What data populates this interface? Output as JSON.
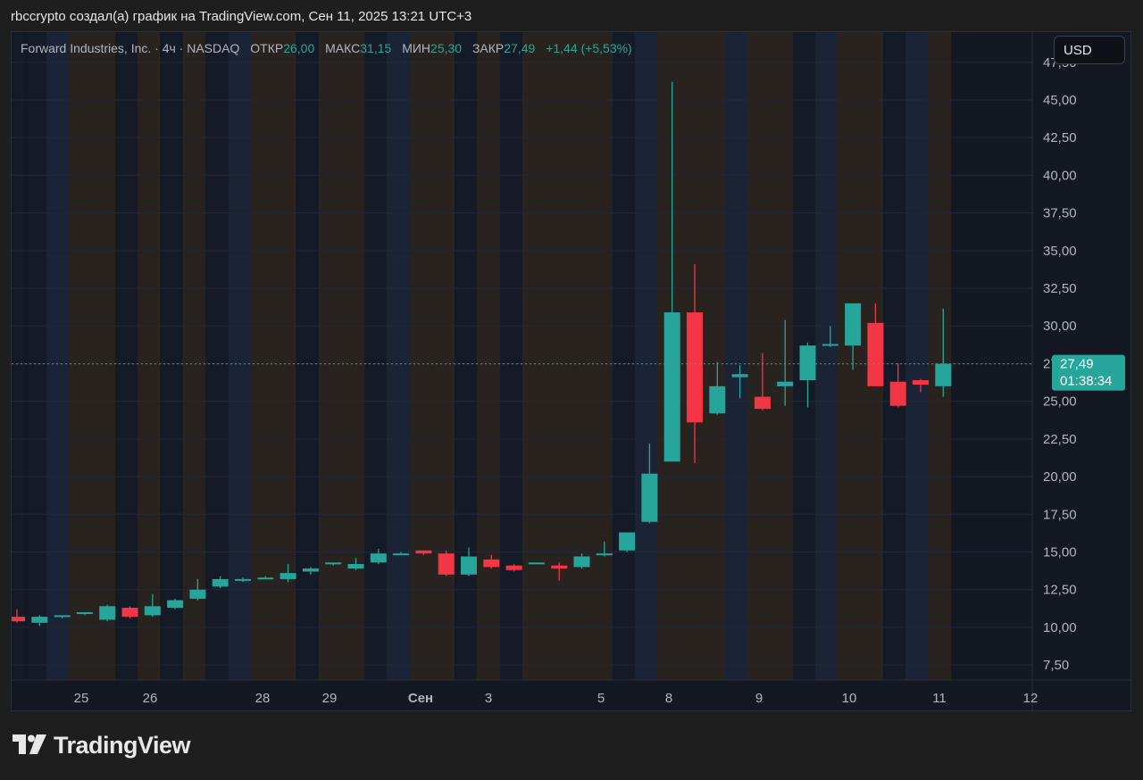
{
  "caption": "rbccrypto создал(а) график на TradingView.com, Сен 11, 2025 13:21 UTC+3",
  "legend": {
    "symbol": "Forward Industries, Inc. · 4ч · NASDAQ",
    "open_label": "ОТКР",
    "open_value": "26,00",
    "high_label": "МАКС",
    "high_value": "31,15",
    "low_label": "МИН",
    "low_value": "25,30",
    "close_label": "ЗАКР",
    "close_value": "27,49",
    "change": "+1,44 (+5,53%)"
  },
  "currency_button": "USD",
  "brand": {
    "name": "TradingView",
    "icon": "tradingview-logo-icon"
  },
  "colors": {
    "up": "#26a69a",
    "down": "#f23645",
    "background": "#141823",
    "session_blue": "#1b2439",
    "session_brown": "#2a2420",
    "price_line": "#26a69a"
  },
  "chart_data": {
    "type": "candlestick",
    "title": "Forward Industries, Inc. · 4ч · NASDAQ",
    "ylim": [
      6.5,
      49.5
    ],
    "y_ticks": [
      "47,50",
      "45,00",
      "42,50",
      "40,00",
      "37,50",
      "35,00",
      "32,50",
      "30,00",
      "27,50",
      "25,00",
      "22,50",
      "20,00",
      "17,50",
      "15,00",
      "12,50",
      "10,00",
      "7,50"
    ],
    "y_tick_values": [
      47.5,
      45,
      42.5,
      40,
      37.5,
      35,
      32.5,
      30,
      27.5,
      25,
      22.5,
      20,
      17.5,
      15,
      12.5,
      10,
      7.5
    ],
    "x_labels": [
      "25",
      "26",
      "28",
      "29",
      "Сен",
      "3",
      "5",
      "8",
      "9",
      "10",
      "11",
      "12"
    ],
    "last_price": {
      "value": 27.49,
      "label": "27,49",
      "countdown": "01:38:34"
    },
    "candles": [
      {
        "o": 10.7,
        "h": 11.2,
        "l": 10.3,
        "c": 10.4
      },
      {
        "o": 10.3,
        "h": 10.8,
        "l": 10.1,
        "c": 10.7
      },
      {
        "o": 10.7,
        "h": 10.8,
        "l": 10.6,
        "c": 10.8
      },
      {
        "o": 10.9,
        "h": 11.0,
        "l": 10.8,
        "c": 11.0
      },
      {
        "o": 10.5,
        "h": 11.5,
        "l": 10.4,
        "c": 11.4
      },
      {
        "o": 11.3,
        "h": 11.4,
        "l": 10.6,
        "c": 10.7
      },
      {
        "o": 10.8,
        "h": 12.2,
        "l": 10.7,
        "c": 11.4
      },
      {
        "o": 11.3,
        "h": 11.9,
        "l": 11.2,
        "c": 11.8
      },
      {
        "o": 11.9,
        "h": 13.2,
        "l": 11.8,
        "c": 12.5
      },
      {
        "o": 12.7,
        "h": 13.4,
        "l": 12.6,
        "c": 13.2
      },
      {
        "o": 13.1,
        "h": 13.3,
        "l": 13.0,
        "c": 13.2
      },
      {
        "o": 13.3,
        "h": 13.4,
        "l": 13.2,
        "c": 13.3
      },
      {
        "o": 13.2,
        "h": 14.2,
        "l": 13.0,
        "c": 13.6
      },
      {
        "o": 13.7,
        "h": 14.0,
        "l": 13.5,
        "c": 13.9
      },
      {
        "o": 14.2,
        "h": 14.3,
        "l": 14.1,
        "c": 14.3
      },
      {
        "o": 13.9,
        "h": 14.6,
        "l": 13.8,
        "c": 14.2
      },
      {
        "o": 14.3,
        "h": 15.2,
        "l": 14.2,
        "c": 14.9
      },
      {
        "o": 14.9,
        "h": 15.0,
        "l": 14.8,
        "c": 14.9
      },
      {
        "o": 15.1,
        "h": 15.1,
        "l": 14.8,
        "c": 14.9
      },
      {
        "o": 14.9,
        "h": 15.1,
        "l": 13.4,
        "c": 13.5
      },
      {
        "o": 13.5,
        "h": 15.3,
        "l": 13.4,
        "c": 14.7
      },
      {
        "o": 14.5,
        "h": 14.8,
        "l": 13.9,
        "c": 14.0
      },
      {
        "o": 14.1,
        "h": 14.2,
        "l": 13.7,
        "c": 13.8
      },
      {
        "o": 14.3,
        "h": 14.3,
        "l": 14.2,
        "c": 14.3
      },
      {
        "o": 14.1,
        "h": 14.3,
        "l": 13.1,
        "c": 13.9
      },
      {
        "o": 14.0,
        "h": 14.9,
        "l": 13.9,
        "c": 14.7
      },
      {
        "o": 14.8,
        "h": 15.7,
        "l": 14.7,
        "c": 14.9
      },
      {
        "o": 15.1,
        "h": 16.3,
        "l": 15.0,
        "c": 16.3
      },
      {
        "o": 17.0,
        "h": 22.2,
        "l": 16.9,
        "c": 20.2
      },
      {
        "o": 21.0,
        "h": 46.2,
        "l": 21.0,
        "c": 30.9
      },
      {
        "o": 30.9,
        "h": 34.1,
        "l": 20.9,
        "c": 23.6
      },
      {
        "o": 24.2,
        "h": 27.6,
        "l": 24.1,
        "c": 26.0
      },
      {
        "o": 26.6,
        "h": 27.4,
        "l": 25.2,
        "c": 26.8
      },
      {
        "o": 25.3,
        "h": 28.2,
        "l": 24.4,
        "c": 24.5
      },
      {
        "o": 26.0,
        "h": 30.4,
        "l": 24.7,
        "c": 26.3
      },
      {
        "o": 26.4,
        "h": 28.9,
        "l": 24.6,
        "c": 28.7
      },
      {
        "o": 28.8,
        "h": 30.0,
        "l": 28.6,
        "c": 28.8
      },
      {
        "o": 28.7,
        "h": 31.5,
        "l": 27.1,
        "c": 31.5
      },
      {
        "o": 30.2,
        "h": 31.5,
        "l": 26.0,
        "c": 26.0
      },
      {
        "o": 26.3,
        "h": 27.5,
        "l": 24.6,
        "c": 24.7
      },
      {
        "o": 26.4,
        "h": 26.5,
        "l": 25.6,
        "c": 26.1
      },
      {
        "o": 26.0,
        "h": 31.15,
        "l": 25.3,
        "c": 27.49
      }
    ]
  }
}
